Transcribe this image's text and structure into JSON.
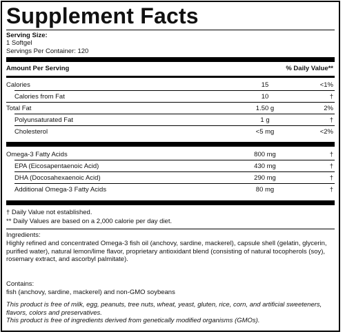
{
  "title": "Supplement Facts",
  "serving": {
    "size_label": "Serving Size:",
    "size_value": "1 Softgel",
    "per_container": "Servings Per Container: 120"
  },
  "header": {
    "amount_label": "Amount Per Serving",
    "dv_label": "% Daily Value**"
  },
  "rows_group1": [
    {
      "name": "Calories",
      "amount": "15",
      "dv": "<1%"
    },
    {
      "name": "Calories from Fat",
      "amount": "10",
      "dv": "†"
    },
    {
      "name": "Total Fat",
      "amount": "1.50 g",
      "dv": "2%"
    },
    {
      "name": "Polyunsaturated Fat",
      "amount": "1 g",
      "dv": "†"
    },
    {
      "name": "Cholesterol",
      "amount": "<5 mg",
      "dv": "<2%"
    }
  ],
  "rows_group2": [
    {
      "name": "Omega-3 Fatty Acids",
      "amount": "800 mg",
      "dv": "†"
    },
    {
      "name": "EPA (Eicosapentaenoic Acid)",
      "amount": "430 mg",
      "dv": "†"
    },
    {
      "name": "DHA (Docosahexaenoic Acid)",
      "amount": "290 mg",
      "dv": "†"
    },
    {
      "name": "Additional Omega-3 Fatty Acids",
      "amount": "80 mg",
      "dv": "†"
    }
  ],
  "footnotes": {
    "note1": "† Daily Value not established.",
    "note2": "** Daily Values are based on a 2,000 calorie per day diet."
  },
  "ingredients": {
    "label": "Ingredients:",
    "text": "Highly refined and concentrated Omega-3 fish oil (anchovy, sardine, mackerel), capsule shell (gelatin, glycerin, purified water), natural lemon/lime flavor, proprietary antioxidant blend (consisting of natural tocopherols (soy), rosemary extract, and ascorbyl palmitate)."
  },
  "contains": {
    "label": "Contains:",
    "text": "fish (anchovy, sardine, mackerel) and non-GMO soybeans"
  },
  "disclaimers": {
    "line1": "This product is free of milk, egg, peanuts, tree nuts, wheat, yeast, gluten, rice, corn, and artificial sweeteners, flavors, colors and preservatives.",
    "line2": "This product is free of ingredients derived from genetically modified organisms (GMOs)."
  }
}
